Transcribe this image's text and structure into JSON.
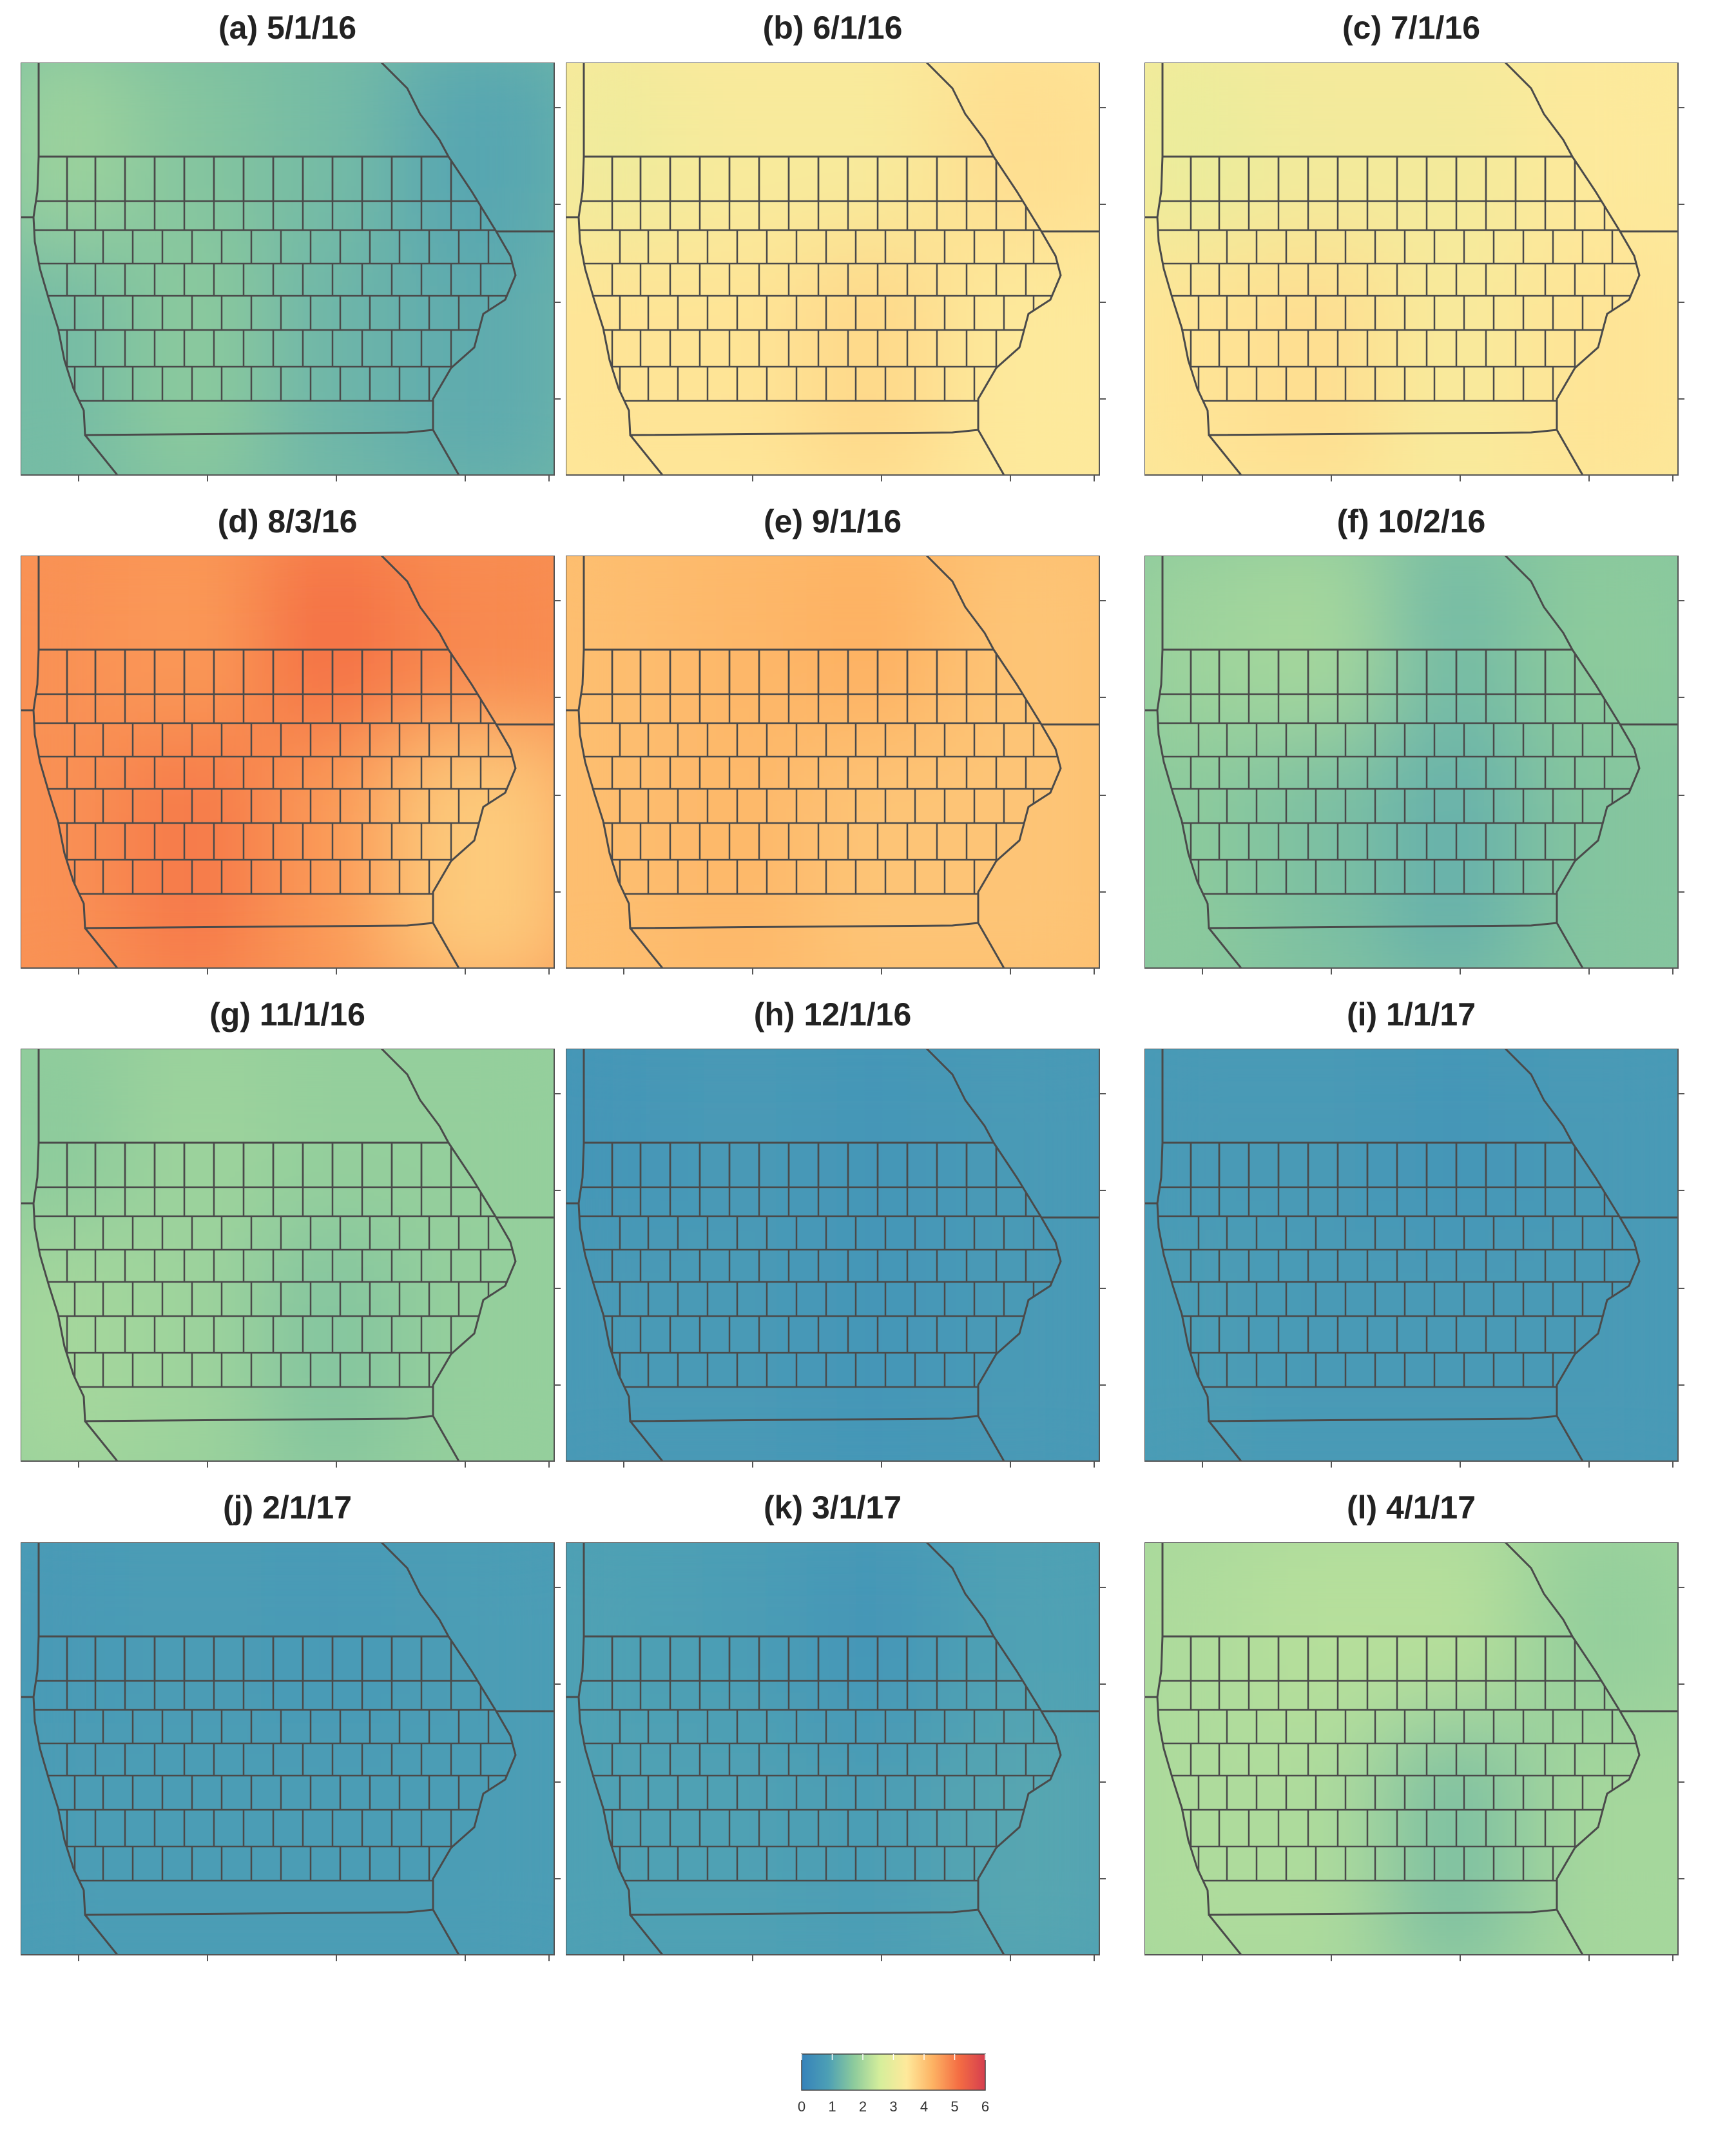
{
  "panels": [
    {
      "id": "a",
      "title": "(a) 5/1/16",
      "values": [
        1.9,
        1.6,
        1.4,
        1.0,
        1.4,
        1.7,
        1.3,
        1.1
      ]
    },
    {
      "id": "b",
      "title": "(b) 6/1/16",
      "values": [
        3.1,
        3.3,
        3.3,
        3.6,
        3.5,
        3.5,
        3.7,
        3.4
      ]
    },
    {
      "id": "c",
      "title": "(c) 7/1/16",
      "values": [
        3.0,
        3.2,
        3.2,
        3.4,
        3.5,
        3.6,
        3.3,
        3.5
      ]
    },
    {
      "id": "d",
      "title": "(d) 8/3/16",
      "values": [
        4.7,
        4.6,
        5.1,
        4.8,
        4.7,
        5.0,
        4.6,
        3.9
      ]
    },
    {
      "id": "e",
      "title": "(e) 9/1/16",
      "values": [
        4.1,
        4.2,
        4.3,
        4.0,
        4.1,
        4.2,
        4.0,
        4.0
      ]
    },
    {
      "id": "f",
      "title": "(f) 10/2/16",
      "values": [
        1.9,
        2.0,
        1.4,
        1.7,
        1.7,
        1.5,
        1.2,
        1.6
      ]
    },
    {
      "id": "g",
      "title": "(g) 11/1/16",
      "values": [
        1.7,
        1.9,
        1.8,
        1.8,
        2.0,
        1.9,
        1.6,
        1.8
      ]
    },
    {
      "id": "h",
      "title": "(h) 12/1/16",
      "values": [
        0.6,
        0.7,
        0.6,
        0.7,
        0.7,
        0.7,
        0.6,
        0.7
      ]
    },
    {
      "id": "i",
      "title": "(i) 1/1/17",
      "values": [
        0.7,
        0.7,
        0.6,
        0.7,
        0.8,
        0.7,
        0.7,
        0.7
      ]
    },
    {
      "id": "j",
      "title": "(j) 2/1/17",
      "values": [
        0.7,
        0.8,
        0.7,
        0.8,
        0.8,
        0.8,
        0.8,
        0.8
      ]
    },
    {
      "id": "k",
      "title": "(k) 3/1/17",
      "values": [
        0.9,
        0.8,
        0.6,
        0.9,
        0.9,
        0.9,
        0.8,
        1.0
      ]
    },
    {
      "id": "l",
      "title": "(l) 4/1/17",
      "values": [
        2.1,
        2.2,
        2.2,
        1.8,
        2.1,
        2.1,
        1.5,
        2.0
      ]
    }
  ],
  "legend": {
    "min": 0,
    "max": 6,
    "ticks": [
      "0",
      "1",
      "2",
      "3",
      "4",
      "5",
      "6"
    ],
    "colors": [
      "#3682ba",
      "#4c9fb5",
      "#8dcb9c",
      "#d6ee9b",
      "#fee99b",
      "#fdb263",
      "#f46d43",
      "#d53e4f"
    ]
  },
  "colors": {
    "boundary": "#4a4a4a",
    "frame": "#555555"
  }
}
